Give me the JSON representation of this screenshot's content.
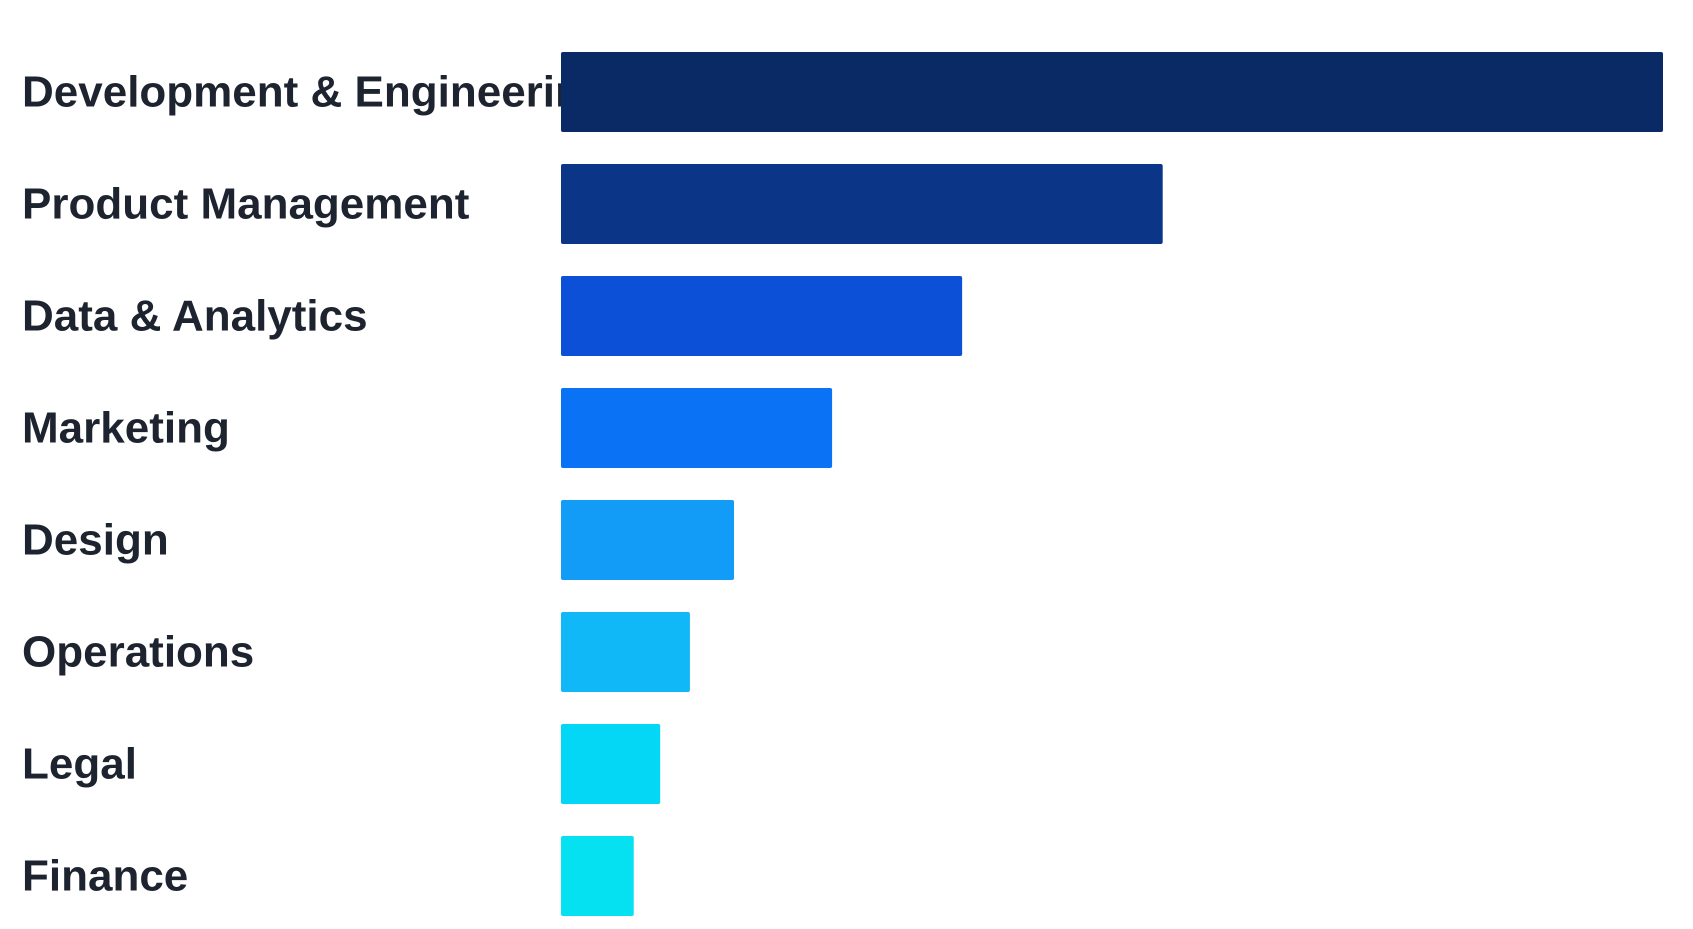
{
  "chart_data": {
    "type": "bar",
    "orientation": "horizontal",
    "categories": [
      "Development & Engineering",
      "Product Management",
      "Data & Analytics",
      "Marketing",
      "Design",
      "Operations",
      "Legal",
      "Finance"
    ],
    "values": [
      100,
      54.6,
      36.4,
      24.6,
      15.7,
      11.7,
      9.0,
      6.6
    ],
    "colors": [
      "#0a2a66",
      "#0b3688",
      "#0b50d6",
      "#0a73f5",
      "#129cf8",
      "#10b8f8",
      "#04d6f5",
      "#05e1f0"
    ],
    "title": "",
    "xlabel": "",
    "ylabel": "",
    "xlim": [
      0,
      100
    ],
    "grid": false,
    "legend": "none",
    "axes_visible": false
  }
}
